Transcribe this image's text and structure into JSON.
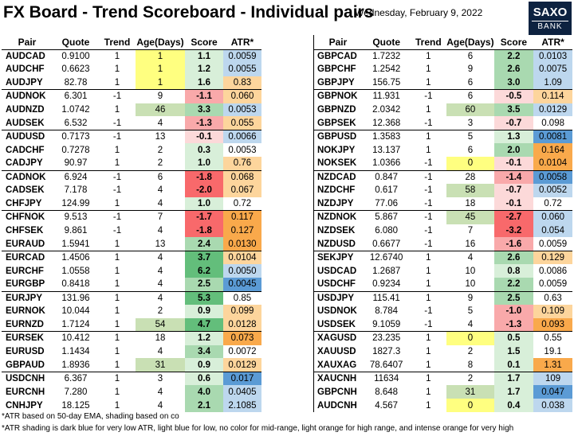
{
  "header": {
    "title": "FX Board - Trend Scoreboard - Individual pairs",
    "date": "Wednesday, February 9, 2022",
    "logo_top": "SAXO",
    "logo_bottom": "BANK"
  },
  "colors": {
    "age_yellow": "#ffff80",
    "age_green": "#c9e0b4",
    "score_green_strong": "#63be7b",
    "score_green_mid": "#a9d9b0",
    "score_green_light": "#d8efd9",
    "score_red_strong": "#f8696b",
    "score_red_mid": "#f9a9aa",
    "score_red_light": "#fcd9d9",
    "atr_dark_blue": "#5b9bd5",
    "atr_light_blue": "#bdd7ee",
    "atr_light_orange": "#fdd59c",
    "atr_orange": "#f9a94b"
  },
  "chart_data": {
    "type": "table",
    "columns": [
      "Pair",
      "Quote",
      "Trend",
      "Age(Days)",
      "Score",
      "ATR*"
    ],
    "left_table": [
      {
        "pair": "AUDCAD",
        "quote": "0.9100",
        "trend": "1",
        "age": "1",
        "score": "1.1",
        "atr": "0.0059",
        "age_bg": "y",
        "score_bg": "g3",
        "atr_bg": "lb"
      },
      {
        "pair": "AUDCHF",
        "quote": "0.6623",
        "trend": "1",
        "age": "1",
        "score": "1.2",
        "atr": "0.0055",
        "age_bg": "y",
        "score_bg": "g3",
        "atr_bg": "lb"
      },
      {
        "pair": "AUDJPY",
        "quote": "82.78",
        "trend": "1",
        "age": "1",
        "score": "1.6",
        "atr": "0.83",
        "age_bg": "y",
        "score_bg": "g3",
        "atr_bg": "lo"
      },
      {
        "pair": "AUDNOK",
        "quote": "6.301",
        "trend": "-1",
        "age": "9",
        "score": "-1.1",
        "atr": "0.060",
        "age_bg": "",
        "score_bg": "r2",
        "atr_bg": "lo",
        "gs": true
      },
      {
        "pair": "AUDNZD",
        "quote": "1.0742",
        "trend": "1",
        "age": "46",
        "score": "3.3",
        "atr": "0.0053",
        "age_bg": "gr",
        "score_bg": "g2",
        "atr_bg": "lb"
      },
      {
        "pair": "AUDSEK",
        "quote": "6.532",
        "trend": "-1",
        "age": "4",
        "score": "-1.3",
        "atr": "0.055",
        "age_bg": "",
        "score_bg": "r2",
        "atr_bg": "lo"
      },
      {
        "pair": "AUDUSD",
        "quote": "0.7173",
        "trend": "-1",
        "age": "13",
        "score": "-0.1",
        "atr": "0.0066",
        "age_bg": "",
        "score_bg": "r3",
        "atr_bg": "lb",
        "gs": true
      },
      {
        "pair": "CADCHF",
        "quote": "0.7278",
        "trend": "1",
        "age": "2",
        "score": "0.3",
        "atr": "0.0053",
        "age_bg": "",
        "score_bg": "g3",
        "atr_bg": ""
      },
      {
        "pair": "CADJPY",
        "quote": "90.97",
        "trend": "1",
        "age": "2",
        "score": "1.0",
        "atr": "0.76",
        "age_bg": "",
        "score_bg": "g3",
        "atr_bg": "lo"
      },
      {
        "pair": "CADNOK",
        "quote": "6.924",
        "trend": "-1",
        "age": "6",
        "score": "-1.8",
        "atr": "0.068",
        "age_bg": "",
        "score_bg": "r1",
        "atr_bg": "lo",
        "gs": true
      },
      {
        "pair": "CADSEK",
        "quote": "7.178",
        "trend": "-1",
        "age": "4",
        "score": "-2.0",
        "atr": "0.067",
        "age_bg": "",
        "score_bg": "r1",
        "atr_bg": "lo"
      },
      {
        "pair": "CHFJPY",
        "quote": "124.99",
        "trend": "1",
        "age": "4",
        "score": "1.0",
        "atr": "0.72",
        "age_bg": "",
        "score_bg": "g3",
        "atr_bg": ""
      },
      {
        "pair": "CHFNOK",
        "quote": "9.513",
        "trend": "-1",
        "age": "7",
        "score": "-1.7",
        "atr": "0.117",
        "age_bg": "",
        "score_bg": "r1",
        "atr_bg": "o",
        "gs": true
      },
      {
        "pair": "CHFSEK",
        "quote": "9.861",
        "trend": "-1",
        "age": "4",
        "score": "-1.8",
        "atr": "0.127",
        "age_bg": "",
        "score_bg": "r1",
        "atr_bg": "o"
      },
      {
        "pair": "EURAUD",
        "quote": "1.5941",
        "trend": "1",
        "age": "13",
        "score": "2.4",
        "atr": "0.0130",
        "age_bg": "",
        "score_bg": "g2",
        "atr_bg": "o"
      },
      {
        "pair": "EURCAD",
        "quote": "1.4506",
        "trend": "1",
        "age": "4",
        "score": "3.7",
        "atr": "0.0104",
        "age_bg": "",
        "score_bg": "g1",
        "atr_bg": "lo",
        "gs": true
      },
      {
        "pair": "EURCHF",
        "quote": "1.0558",
        "trend": "1",
        "age": "4",
        "score": "6.2",
        "atr": "0.0050",
        "age_bg": "",
        "score_bg": "g1",
        "atr_bg": "lb"
      },
      {
        "pair": "EURGBP",
        "quote": "0.8418",
        "trend": "1",
        "age": "4",
        "score": "2.5",
        "atr": "0.0045",
        "age_bg": "",
        "score_bg": "g2",
        "atr_bg": "db"
      },
      {
        "pair": "EURJPY",
        "quote": "131.96",
        "trend": "1",
        "age": "4",
        "score": "5.3",
        "atr": "0.85",
        "age_bg": "",
        "score_bg": "g1",
        "atr_bg": "",
        "gs": true
      },
      {
        "pair": "EURNOK",
        "quote": "10.044",
        "trend": "1",
        "age": "2",
        "score": "0.9",
        "atr": "0.099",
        "age_bg": "",
        "score_bg": "g3",
        "atr_bg": "lo"
      },
      {
        "pair": "EURNZD",
        "quote": "1.7124",
        "trend": "1",
        "age": "54",
        "score": "4.7",
        "atr": "0.0128",
        "age_bg": "gr",
        "score_bg": "g1",
        "atr_bg": "lo"
      },
      {
        "pair": "EURSEK",
        "quote": "10.412",
        "trend": "1",
        "age": "18",
        "score": "1.2",
        "atr": "0.073",
        "age_bg": "",
        "score_bg": "g3",
        "atr_bg": "o",
        "gs": true
      },
      {
        "pair": "EURUSD",
        "quote": "1.1434",
        "trend": "1",
        "age": "4",
        "score": "3.4",
        "atr": "0.0072",
        "age_bg": "",
        "score_bg": "g2",
        "atr_bg": ""
      },
      {
        "pair": "GBPAUD",
        "quote": "1.8936",
        "trend": "1",
        "age": "31",
        "score": "0.9",
        "atr": "0.0129",
        "age_bg": "gr",
        "score_bg": "g3",
        "atr_bg": "lo"
      },
      {
        "pair": "USDCNH",
        "quote": "6.367",
        "trend": "1",
        "age": "3",
        "score": "0.6",
        "atr": "0.017",
        "age_bg": "",
        "score_bg": "g3",
        "atr_bg": "db",
        "gs": true
      },
      {
        "pair": "EURCNH",
        "quote": "7.280",
        "trend": "1",
        "age": "4",
        "score": "4.0",
        "atr": "0.0405",
        "age_bg": "",
        "score_bg": "g2",
        "atr_bg": "lb"
      },
      {
        "pair": "CNHJPY",
        "quote": "18.125",
        "trend": "1",
        "age": "4",
        "score": "2.1",
        "atr": "2.1085",
        "age_bg": "",
        "score_bg": "g2",
        "atr_bg": "lb"
      }
    ],
    "right_table": [
      {
        "pair": "GBPCAD",
        "quote": "1.7232",
        "trend": "1",
        "age": "6",
        "score": "2.2",
        "atr": "0.0103",
        "age_bg": "",
        "score_bg": "g2",
        "atr_bg": "lb"
      },
      {
        "pair": "GBPCHF",
        "quote": "1.2542",
        "trend": "1",
        "age": "9",
        "score": "2.6",
        "atr": "0.0075",
        "age_bg": "",
        "score_bg": "g2",
        "atr_bg": "lb"
      },
      {
        "pair": "GBPJPY",
        "quote": "156.75",
        "trend": "1",
        "age": "6",
        "score": "3.0",
        "atr": "1.09",
        "age_bg": "",
        "score_bg": "g2",
        "atr_bg": "lb"
      },
      {
        "pair": "GBPNOK",
        "quote": "11.931",
        "trend": "-1",
        "age": "6",
        "score": "-0.5",
        "atr": "0.114",
        "age_bg": "",
        "score_bg": "r3",
        "atr_bg": "lo",
        "gs": true
      },
      {
        "pair": "GBPNZD",
        "quote": "2.0342",
        "trend": "1",
        "age": "60",
        "score": "3.5",
        "atr": "0.0129",
        "age_bg": "gr",
        "score_bg": "g2",
        "atr_bg": "lb"
      },
      {
        "pair": "GBPSEK",
        "quote": "12.368",
        "trend": "-1",
        "age": "3",
        "score": "-0.7",
        "atr": "0.098",
        "age_bg": "",
        "score_bg": "r3",
        "atr_bg": ""
      },
      {
        "pair": "GBPUSD",
        "quote": "1.3583",
        "trend": "1",
        "age": "5",
        "score": "1.3",
        "atr": "0.0081",
        "age_bg": "",
        "score_bg": "g3",
        "atr_bg": "db",
        "gs": true
      },
      {
        "pair": "NOKJPY",
        "quote": "13.137",
        "trend": "1",
        "age": "6",
        "score": "2.0",
        "atr": "0.164",
        "age_bg": "",
        "score_bg": "g2",
        "atr_bg": "o"
      },
      {
        "pair": "NOKSEK",
        "quote": "1.0366",
        "trend": "-1",
        "age": "0",
        "score": "-0.1",
        "atr": "0.0104",
        "age_bg": "y",
        "score_bg": "r3",
        "atr_bg": "o"
      },
      {
        "pair": "NZDCAD",
        "quote": "0.847",
        "trend": "-1",
        "age": "28",
        "score": "-1.4",
        "atr": "0.0058",
        "age_bg": "",
        "score_bg": "r2",
        "atr_bg": "db",
        "gs": true
      },
      {
        "pair": "NZDCHF",
        "quote": "0.617",
        "trend": "-1",
        "age": "58",
        "score": "-0.7",
        "atr": "0.0052",
        "age_bg": "gr",
        "score_bg": "r3",
        "atr_bg": "lb"
      },
      {
        "pair": "NZDJPY",
        "quote": "77.06",
        "trend": "-1",
        "age": "18",
        "score": "-0.1",
        "atr": "0.72",
        "age_bg": "",
        "score_bg": "r3",
        "atr_bg": ""
      },
      {
        "pair": "NZDNOK",
        "quote": "5.867",
        "trend": "-1",
        "age": "45",
        "score": "-2.7",
        "atr": "0.060",
        "age_bg": "gr",
        "score_bg": "r1",
        "atr_bg": "lb",
        "gs": true
      },
      {
        "pair": "NZDSEK",
        "quote": "6.080",
        "trend": "-1",
        "age": "7",
        "score": "-3.2",
        "atr": "0.054",
        "age_bg": "",
        "score_bg": "r1",
        "atr_bg": "lb"
      },
      {
        "pair": "NZDUSD",
        "quote": "0.6677",
        "trend": "-1",
        "age": "16",
        "score": "-1.6",
        "atr": "0.0059",
        "age_bg": "",
        "score_bg": "r2",
        "atr_bg": ""
      },
      {
        "pair": "SEKJPY",
        "quote": "12.6740",
        "trend": "1",
        "age": "4",
        "score": "2.6",
        "atr": "0.129",
        "age_bg": "",
        "score_bg": "g2",
        "atr_bg": "lo",
        "gs": true
      },
      {
        "pair": "USDCAD",
        "quote": "1.2687",
        "trend": "1",
        "age": "10",
        "score": "0.8",
        "atr": "0.0086",
        "age_bg": "",
        "score_bg": "g3",
        "atr_bg": ""
      },
      {
        "pair": "USDCHF",
        "quote": "0.9234",
        "trend": "1",
        "age": "10",
        "score": "2.2",
        "atr": "0.0059",
        "age_bg": "",
        "score_bg": "g2",
        "atr_bg": ""
      },
      {
        "pair": "USDJPY",
        "quote": "115.41",
        "trend": "1",
        "age": "9",
        "score": "2.5",
        "atr": "0.63",
        "age_bg": "",
        "score_bg": "g2",
        "atr_bg": "",
        "gs": true
      },
      {
        "pair": "USDNOK",
        "quote": "8.784",
        "trend": "-1",
        "age": "5",
        "score": "-1.0",
        "atr": "0.109",
        "age_bg": "",
        "score_bg": "r2",
        "atr_bg": "lo"
      },
      {
        "pair": "USDSEK",
        "quote": "9.1059",
        "trend": "-1",
        "age": "4",
        "score": "-1.3",
        "atr": "0.093",
        "age_bg": "",
        "score_bg": "r2",
        "atr_bg": "o"
      },
      {
        "pair": "XAGUSD",
        "quote": "23.235",
        "trend": "1",
        "age": "0",
        "score": "0.5",
        "atr": "0.55",
        "age_bg": "y",
        "score_bg": "g3",
        "atr_bg": "",
        "gs": true
      },
      {
        "pair": "XAUUSD",
        "quote": "1827.3",
        "trend": "1",
        "age": "2",
        "score": "1.5",
        "atr": "19.1",
        "age_bg": "",
        "score_bg": "g3",
        "atr_bg": ""
      },
      {
        "pair": "XAUXAG",
        "quote": "78.6407",
        "trend": "1",
        "age": "8",
        "score": "0.1",
        "atr": "1.31",
        "age_bg": "",
        "score_bg": "g3",
        "atr_bg": "o"
      },
      {
        "pair": "XAUCNH",
        "quote": "11634",
        "trend": "1",
        "age": "2",
        "score": "1.7",
        "atr": "109",
        "age_bg": "",
        "score_bg": "g3",
        "atr_bg": "lb",
        "gs": true
      },
      {
        "pair": "GBPCNH",
        "quote": "8.648",
        "trend": "1",
        "age": "31",
        "score": "1.7",
        "atr": "0.047",
        "age_bg": "gr",
        "score_bg": "g3",
        "atr_bg": "db"
      },
      {
        "pair": "AUDCNH",
        "quote": "4.567",
        "trend": "1",
        "age": "0",
        "score": "0.4",
        "atr": "0.038",
        "age_bg": "y",
        "score_bg": "g3",
        "atr_bg": "lb"
      }
    ]
  },
  "footnotes": {
    "line1": "*ATR based on 50-day EMA, shading based on co",
    "line2": "*ATR shading is dark blue for very low ATR, light blue for low, no color for mid-range, light orange for high range, and intense orange for very high"
  }
}
